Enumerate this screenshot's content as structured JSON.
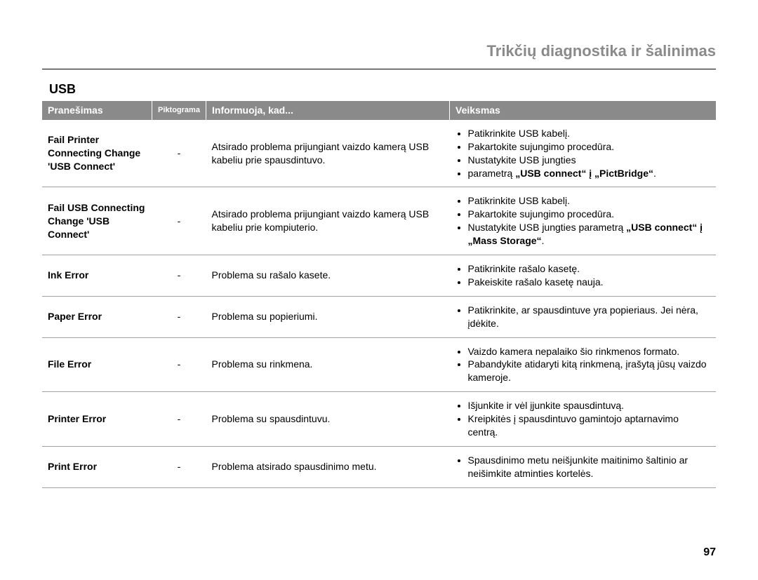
{
  "page": {
    "chapter_title": "Trikčių diagnostika ir šalinimas",
    "section_title": "USB",
    "page_number": "97"
  },
  "table": {
    "headers": {
      "message": "Pranešimas",
      "pictogram": "Piktograma",
      "info": "Informuoja, kad...",
      "action": "Veiksmas"
    },
    "rows": [
      {
        "message": "Fail Printer Connecting Change 'USB Connect'",
        "pictogram": "-",
        "info": "Atsirado problema prijungiant vaizdo kamerą USB kabeliu prie spausdintuvo.",
        "actions": [
          {
            "plain": "Patikrinkite USB kabelį."
          },
          {
            "plain": "Pakartokite sujungimo procedūra."
          },
          {
            "plain": "Nustatykite USB jungties"
          },
          {
            "plain": "parametrą ",
            "bold": "„USB connect“ į „PictBridge“",
            "plain_after": "."
          }
        ]
      },
      {
        "message": "Fail USB Connecting Change 'USB Connect'",
        "pictogram": "-",
        "info": "Atsirado problema prijungiant vaizdo kamerą USB kabeliu prie kompiuterio.",
        "actions": [
          {
            "plain": "Patikrinkite USB kabelį."
          },
          {
            "plain": "Pakartokite sujungimo procedūra."
          },
          {
            "plain": "Nustatykite USB jungties parametrą ",
            "bold": "„USB connect“ į „Mass Storage“",
            "plain_after": "."
          }
        ]
      },
      {
        "message": "Ink Error",
        "pictogram": "-",
        "info": "Problema su rašalo kasete.",
        "actions": [
          {
            "plain": "Patikrinkite rašalo kasetę."
          },
          {
            "plain": "Pakeiskite rašalo kasetę nauja."
          }
        ]
      },
      {
        "message": "Paper Error",
        "pictogram": "-",
        "info": "Problema su popieriumi.",
        "actions": [
          {
            "plain": "Patikrinkite, ar spausdintuve yra popieriaus. Jei nėra, įdėkite."
          }
        ]
      },
      {
        "message": "File Error",
        "pictogram": "-",
        "info": "Problema su rinkmena.",
        "actions": [
          {
            "plain": "Vaizdo kamera nepalaiko šio rinkmenos formato."
          },
          {
            "plain": "Pabandykite atidaryti kitą rinkmeną, įrašytą jūsų vaizdo kameroje."
          }
        ]
      },
      {
        "message": "Printer Error",
        "pictogram": "-",
        "info": "Problema su spausdintuvu.",
        "actions": [
          {
            "plain": "Išjunkite ir vėl įjunkite spausdintuvą."
          },
          {
            "plain": "Kreipkitės į spausdintuvo gamintojo aptarnavimo centrą."
          }
        ]
      },
      {
        "message": "Print Error",
        "pictogram": "-",
        "info": "Problema atsirado spausdinimo metu.",
        "actions": [
          {
            "plain": "Spausdinimo metu neišjunkite maitinimo šaltinio ar neišimkite atminties kortelės."
          }
        ]
      }
    ]
  }
}
